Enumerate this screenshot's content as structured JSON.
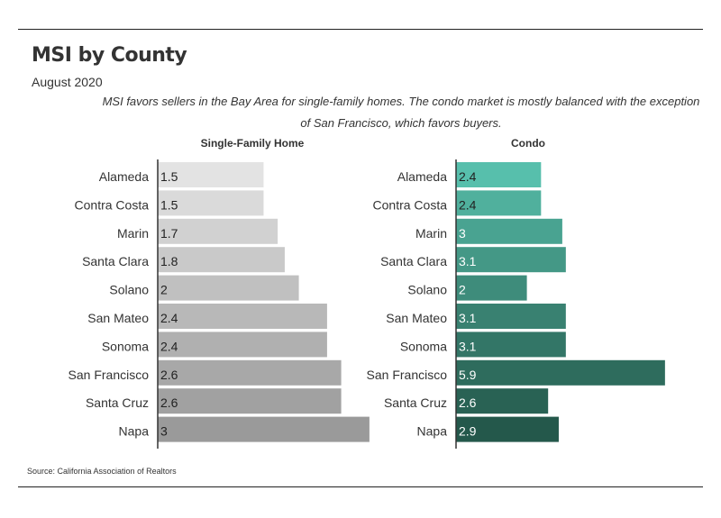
{
  "title": "MSI by County",
  "subtitle": "August 2020",
  "caption": "MSI favors sellers in the Bay Area for single-family homes. The condo market is mostly balanced with the exception of San Francisco, which favors buyers.",
  "source": "Source:  California Association of Realtors",
  "chart_data": [
    {
      "type": "bar",
      "orientation": "horizontal",
      "title": "Single-Family Home",
      "categories": [
        "Alameda",
        "Contra Costa",
        "Marin",
        "Santa Clara",
        "Solano",
        "San Mateo",
        "Sonoma",
        "San Francisco",
        "Santa Cruz",
        "Napa"
      ],
      "values": [
        1.5,
        1.5,
        1.7,
        1.8,
        2,
        2.4,
        2.4,
        2.6,
        2.6,
        3
      ],
      "labels": [
        "1.5",
        "1.5",
        "1.7",
        "1.8",
        "2",
        "2.4",
        "2.4",
        "2.6",
        "2.6",
        "3"
      ],
      "colors": [
        "#e3e3e3",
        "#dadada",
        "#d1d1d1",
        "#c9c9c9",
        "#c0c0c0",
        "#b8b8b8",
        "#b0b0b0",
        "#a8a8a8",
        "#a1a1a1",
        "#9a9a9a"
      ],
      "label_color": "#222222",
      "grid": false
    },
    {
      "type": "bar",
      "orientation": "horizontal",
      "title": "Condo",
      "categories": [
        "Alameda",
        "Contra Costa",
        "Marin",
        "Santa Clara",
        "Solano",
        "San Mateo",
        "Sonoma",
        "San Francisco",
        "Santa Cruz",
        "Napa"
      ],
      "values": [
        2.4,
        2.4,
        3,
        3.1,
        2,
        3.1,
        3.1,
        5.9,
        2.6,
        2.9
      ],
      "labels": [
        "2.4",
        "2.4",
        "3",
        "3.1",
        "2",
        "3.1",
        "3.1",
        "5.9",
        "2.6",
        "2.9"
      ],
      "colors": [
        "#57bfac",
        "#50b09d",
        "#49a391",
        "#449886",
        "#3e8c7b",
        "#398171",
        "#337667",
        "#2e6c5d",
        "#296254",
        "#24584b"
      ],
      "label_color_dark": "#222222",
      "label_color_light": "#ffffff",
      "grid": false
    }
  ]
}
